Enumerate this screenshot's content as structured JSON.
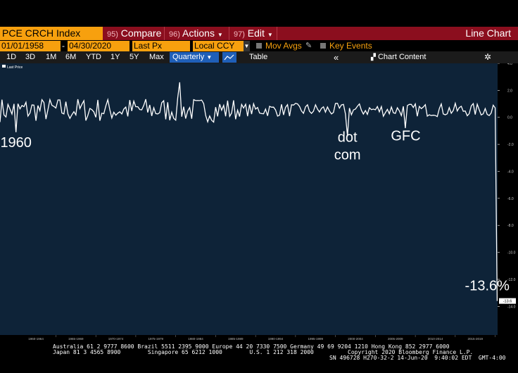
{
  "toolbar": {
    "ticker": "PCE CRCH Index",
    "compare_num": "95)",
    "compare_label": "Compare",
    "actions_num": "96)",
    "actions_label": "Actions",
    "edit_num": "97)",
    "edit_label": "Edit",
    "chart_type": "Line Chart"
  },
  "controls": {
    "start_date": "01/01/1958",
    "end_date": "04/30/2020",
    "price_field": "Last Px",
    "currency": "Local CCY",
    "mov_avgs": "Mov Avgs",
    "key_events": "Key Events"
  },
  "periods": {
    "items": [
      "1D",
      "3D",
      "1M",
      "6M",
      "YTD",
      "1Y",
      "5Y",
      "Max"
    ],
    "frequency": "Quarterly",
    "table": "Table",
    "chart_content": "Chart Content"
  },
  "chart_data": {
    "type": "line",
    "legend": "Last Price",
    "legend_position": "top-left",
    "ylim": [
      -15,
      4
    ],
    "yticks": [
      4,
      2,
      0,
      -2,
      -4,
      -6,
      -8,
      -10,
      -12,
      -14
    ],
    "x_range": [
      1958,
      2020.3
    ],
    "x_tick_labels": [
      "1960-1964",
      "1965-1969",
      "1970-1974",
      "1975-1979",
      "1980-1984",
      "1985-1989",
      "1990-1994",
      "1995-1999",
      "2000-2004",
      "2005-2009",
      "2010-2014",
      "2015-2019"
    ],
    "last_value_label": "-13.6",
    "series": [
      {
        "color": "#ffffff",
        "x_start": 1958.0,
        "x_step": 0.25,
        "values": []
      }
    ],
    "annotations": [
      {
        "text": "1960",
        "x": 1960.0,
        "y": -2.2
      },
      {
        "text": "dot\ncom",
        "x": 2001.5,
        "y": -1.8
      },
      {
        "text": "GFC",
        "x": 2008.8,
        "y": -1.7
      },
      {
        "text": "-13.6%",
        "x": 2019.0,
        "y": -12.8
      }
    ]
  },
  "footer": {
    "line1": "Australia 61 2 9777 8600 Brazil 5511 2395 9000 Europe 44 20 7330 7500 Germany 49 69 9204 1210 Hong Kong 852 2977 6000",
    "line2": "Japan 81 3 4565 8900        Singapore 65 6212 1000        U.S. 1 212 318 2000          Copyright 2020 Bloomberg Finance L.P.",
    "line3": "SN 496728 H270-32-2 14-Jun-20  9:40:02 EDT  GMT-4:00"
  }
}
